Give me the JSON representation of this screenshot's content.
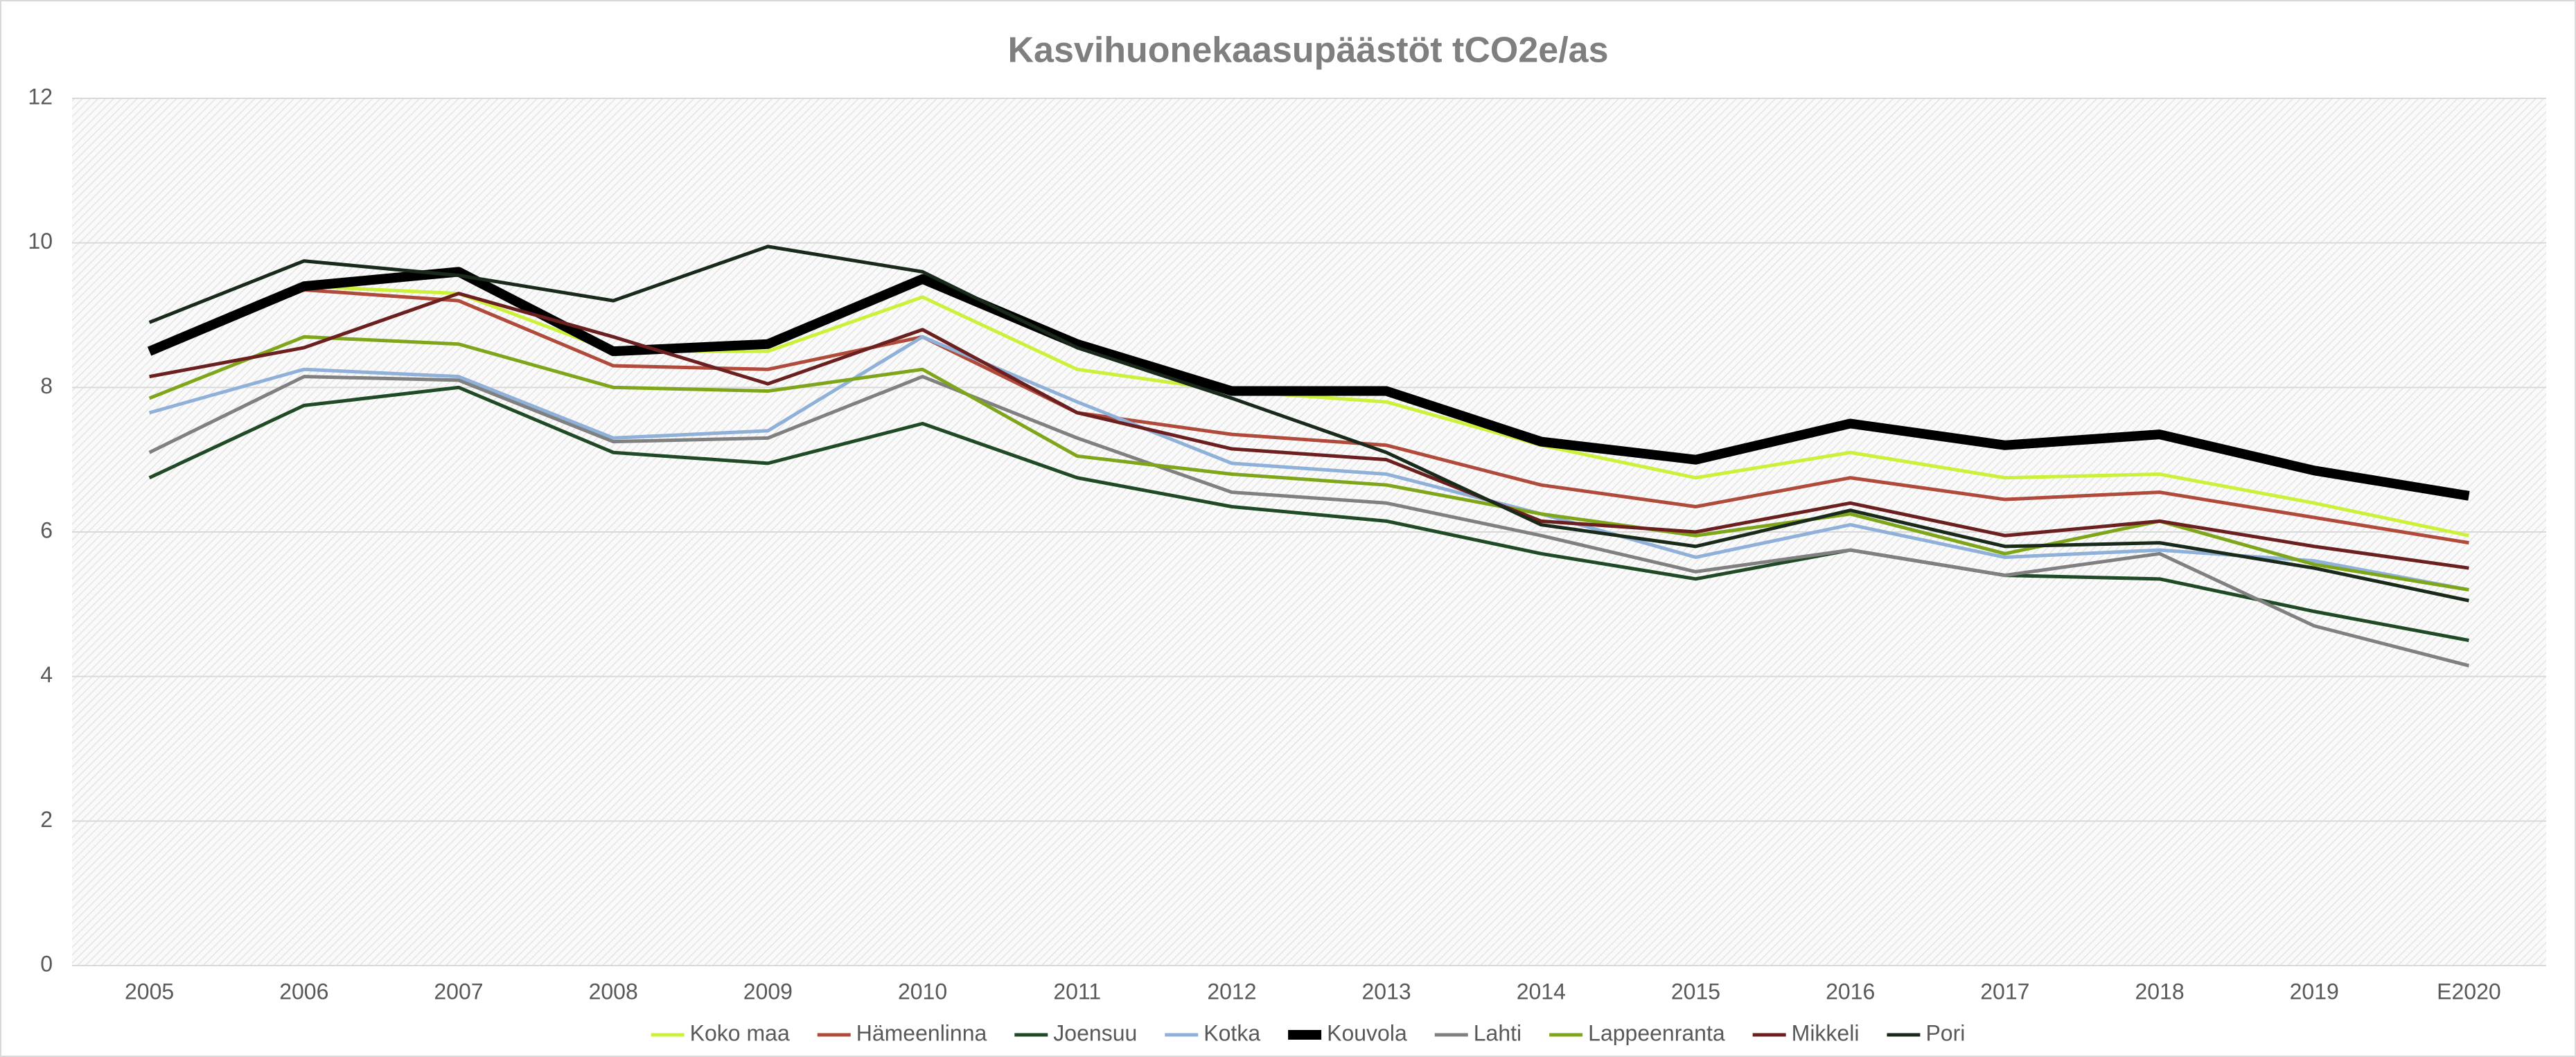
{
  "chart_data": {
    "type": "line",
    "title": "Kasvihuonekaasupäästöt tCO2e/as",
    "categories": [
      "2005",
      "2006",
      "2007",
      "2008",
      "2009",
      "2010",
      "2011",
      "2012",
      "2013",
      "2014",
      "2015",
      "2016",
      "2017",
      "2018",
      "2019",
      "E2020"
    ],
    "ylim": [
      0,
      12
    ],
    "yticks": [
      0,
      2,
      4,
      6,
      8,
      10,
      12
    ],
    "grid": true,
    "legend": "bottom",
    "series": [
      {
        "name": "Koko maa",
        "color": "#ccf13a",
        "width": 5,
        "values": [
          8.5,
          9.4,
          9.3,
          8.5,
          8.5,
          9.25,
          8.25,
          7.95,
          7.8,
          7.2,
          6.75,
          7.1,
          6.75,
          6.8,
          6.4,
          5.95
        ]
      },
      {
        "name": "Hämeenlinna",
        "color": "#b04a3a",
        "width": 5,
        "values": [
          8.5,
          9.35,
          9.2,
          8.3,
          8.25,
          8.7,
          7.65,
          7.35,
          7.2,
          6.65,
          6.35,
          6.75,
          6.45,
          6.55,
          6.2,
          5.85
        ]
      },
      {
        "name": "Joensuu",
        "color": "#1f4a25",
        "width": 5,
        "values": [
          6.75,
          7.75,
          8.0,
          7.1,
          6.95,
          7.5,
          6.75,
          6.35,
          6.15,
          5.7,
          5.35,
          5.75,
          5.4,
          5.35,
          4.9,
          4.5
        ]
      },
      {
        "name": "Kotka",
        "color": "#8fb0d8",
        "width": 5,
        "values": [
          7.65,
          8.25,
          8.15,
          7.3,
          7.4,
          8.7,
          7.8,
          6.95,
          6.8,
          6.25,
          5.65,
          6.1,
          5.65,
          5.75,
          5.6,
          5.2
        ]
      },
      {
        "name": "Kouvola",
        "color": "#000000",
        "width": 14,
        "values": [
          8.5,
          9.4,
          9.6,
          8.5,
          8.6,
          9.5,
          8.6,
          7.95,
          7.95,
          7.25,
          7.0,
          7.5,
          7.2,
          7.35,
          6.85,
          6.5
        ]
      },
      {
        "name": "Lahti",
        "color": "#808080",
        "width": 5,
        "values": [
          7.1,
          8.15,
          8.1,
          7.25,
          7.3,
          8.15,
          7.3,
          6.55,
          6.4,
          5.95,
          5.45,
          5.75,
          5.4,
          5.7,
          4.7,
          4.15
        ]
      },
      {
        "name": "Lappeenranta",
        "color": "#7fa61a",
        "width": 5,
        "values": [
          7.85,
          8.7,
          8.6,
          8.0,
          7.95,
          8.25,
          7.05,
          6.8,
          6.65,
          6.25,
          5.95,
          6.25,
          5.7,
          6.15,
          5.55,
          5.2
        ]
      },
      {
        "name": "Mikkeli",
        "color": "#6b1f1f",
        "width": 5,
        "values": [
          8.15,
          8.55,
          9.3,
          8.7,
          8.05,
          8.8,
          7.65,
          7.15,
          7.0,
          6.15,
          6.0,
          6.4,
          5.95,
          6.15,
          5.8,
          5.5
        ]
      },
      {
        "name": "Pori",
        "color": "#1a2a1a",
        "width": 5,
        "values": [
          8.9,
          9.75,
          9.55,
          9.2,
          9.95,
          9.6,
          8.55,
          7.85,
          7.1,
          6.1,
          5.8,
          6.3,
          5.8,
          5.85,
          5.5,
          5.05
        ]
      }
    ]
  }
}
